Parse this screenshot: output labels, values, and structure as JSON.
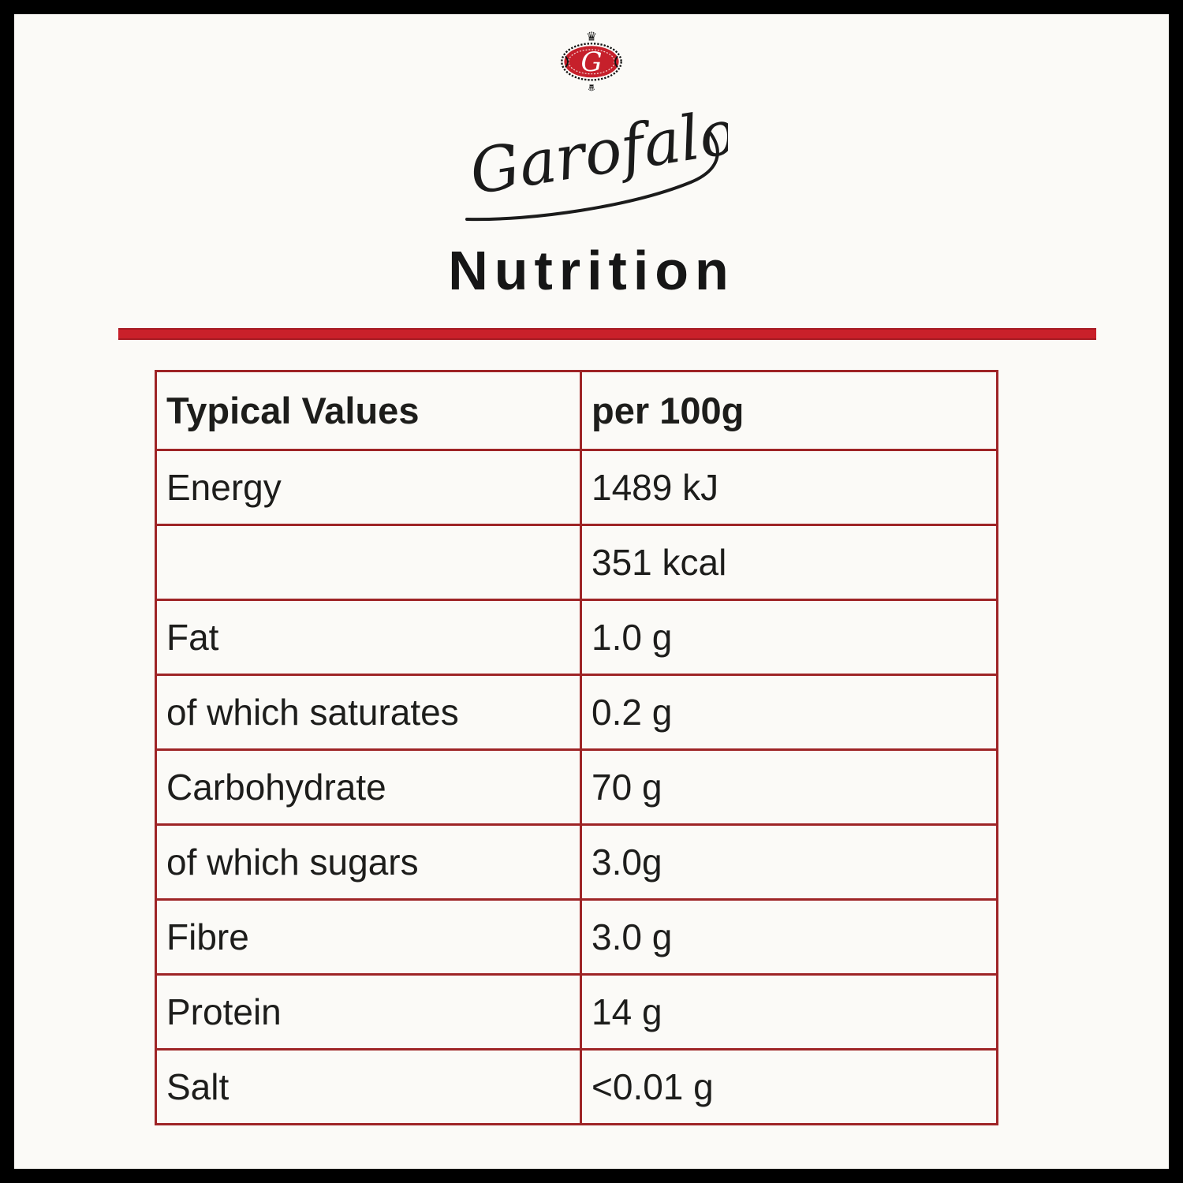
{
  "brand": {
    "name": "Garofalo",
    "crest_letter": "G"
  },
  "icons": {
    "crown": "♛"
  },
  "title": "Nutrition",
  "colors": {
    "background": "#fbfaf7",
    "frame": "#000000",
    "accent_red": "#c9202a",
    "table_border": "#9e2426",
    "crest_red": "#c6202b",
    "text": "#1d1d1b"
  },
  "table": {
    "header": [
      "Typical Values",
      "per 100g"
    ],
    "rows": [
      [
        "Energy",
        "1489 kJ"
      ],
      [
        "",
        "351 kcal"
      ],
      [
        "Fat",
        "1.0 g"
      ],
      [
        "of which saturates",
        "0.2 g"
      ],
      [
        "Carbohydrate",
        "70 g"
      ],
      [
        "of which sugars",
        "3.0g"
      ],
      [
        "Fibre",
        "3.0 g"
      ],
      [
        "Protein",
        "14 g"
      ],
      [
        "Salt",
        "<0.01 g"
      ]
    ]
  }
}
